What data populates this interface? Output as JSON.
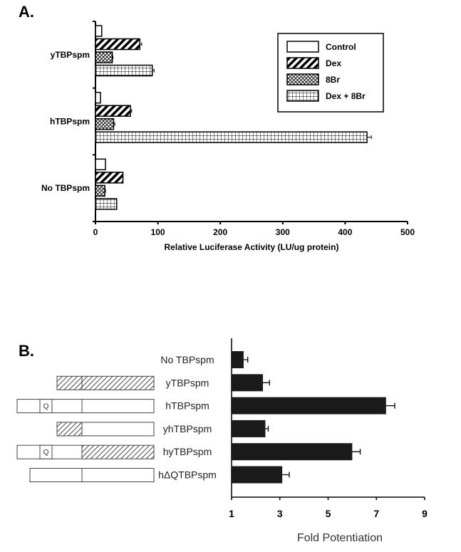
{
  "chart_data": [
    {
      "panel_label": "A.",
      "type": "bar",
      "orientation": "horizontal",
      "categories": [
        "yTBPspm",
        "hTBPspm",
        "No TBPspm"
      ],
      "series": [
        {
          "name": "Control",
          "pattern": "open",
          "values": [
            10,
            8,
            16
          ],
          "errors": [
            0,
            0,
            0
          ]
        },
        {
          "name": "Dex",
          "pattern": "diagonal",
          "values": [
            71,
            56,
            44
          ],
          "errors": [
            3,
            2,
            0
          ]
        },
        {
          "name": "8Br",
          "pattern": "crosshatch",
          "values": [
            27,
            29,
            15
          ],
          "errors": [
            1,
            2,
            1
          ]
        },
        {
          "name": "Dex + 8Br",
          "pattern": "grid",
          "values": [
            91,
            435,
            34
          ],
          "errors": [
            3,
            7,
            0
          ]
        }
      ],
      "xlabel": "Relative Luciferase Activity (LU/ug protein)",
      "xlim": [
        0,
        500
      ],
      "xticks": [
        "0",
        "100",
        "200",
        "300",
        "400",
        "500"
      ],
      "legend": "top-right",
      "grid": false
    },
    {
      "panel_label": "B.",
      "type": "bar",
      "orientation": "horizontal",
      "categories": [
        "No TBPspm",
        "yTBPspm",
        "hTBPspm",
        "yhTBPspm",
        "hyTBPspm",
        "hΔQTBPspm"
      ],
      "values": [
        1.5,
        2.3,
        7.4,
        2.4,
        6.0,
        3.1
      ],
      "errors": [
        0.17,
        0.27,
        0.36,
        0.12,
        0.33,
        0.29
      ],
      "xlabel": "Fold Potentiation",
      "xlim": [
        1,
        9
      ],
      "xticks": [
        "1",
        "3",
        "5",
        "7",
        "9"
      ],
      "bar_color": "#1a1a1a",
      "grid": false,
      "diagram": {
        "domain_marker": "Q",
        "constructs": [
          {
            "name": "No TBPspm",
            "segments": []
          },
          {
            "name": "yTBPspm",
            "segments": [
              "yeast-N",
              "yeast-C"
            ]
          },
          {
            "name": "hTBPspm",
            "segments": [
              "human-N-Q",
              "human-C"
            ]
          },
          {
            "name": "yhTBPspm",
            "segments": [
              "yeast-N",
              "human-C"
            ]
          },
          {
            "name": "hyTBPspm",
            "segments": [
              "human-N-Q",
              "yeast-C"
            ]
          },
          {
            "name": "hΔQTBPspm",
            "segments": [
              "human-N-deltaQ",
              "human-C"
            ]
          }
        ]
      }
    }
  ]
}
